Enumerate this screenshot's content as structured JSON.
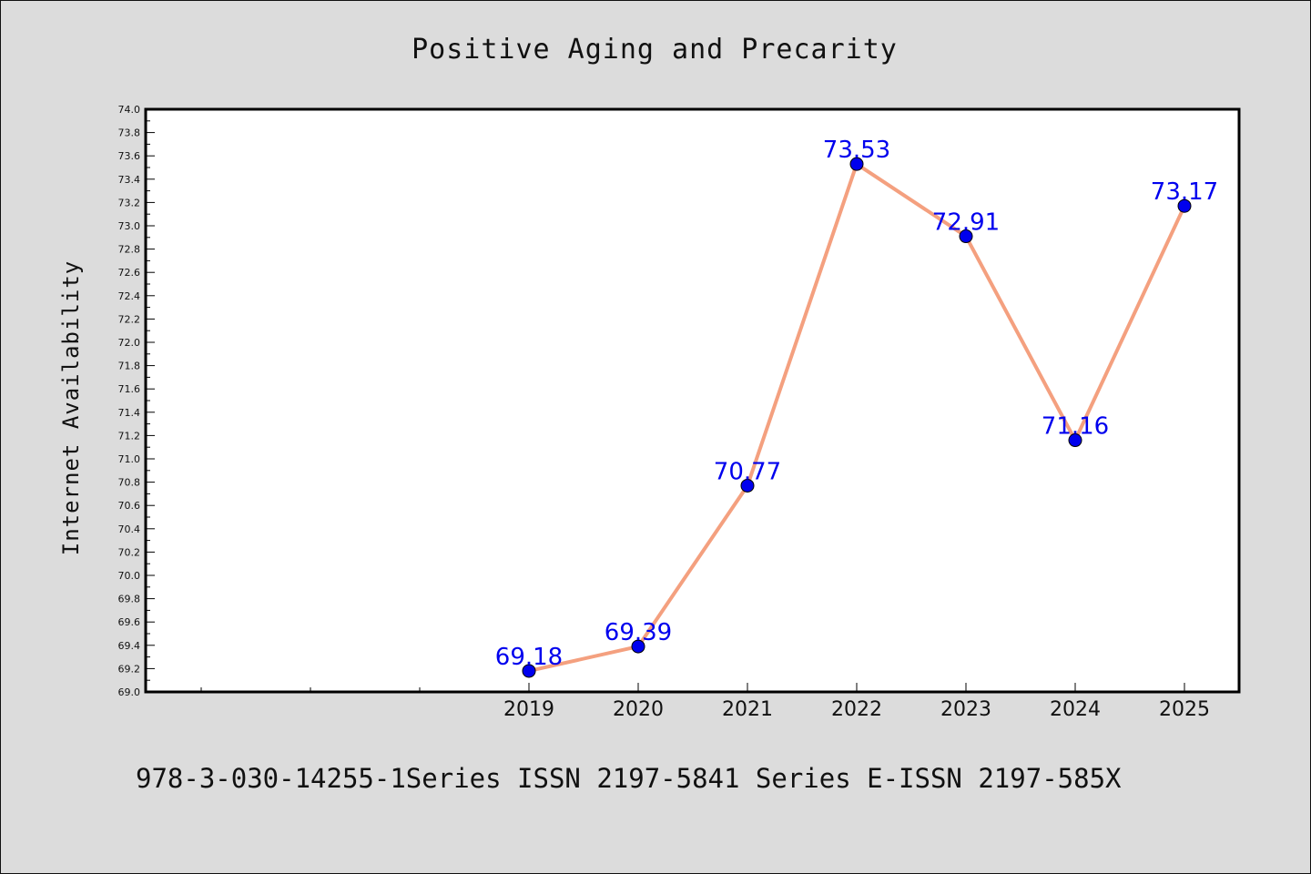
{
  "chart_data": {
    "type": "line",
    "title": "Positive Aging and Precarity",
    "ylabel": "Internet Availability",
    "xlabel": "",
    "footer_text": "978-3-030-14255-1Series ISSN 2197-5841 Series E-ISSN 2197-585X",
    "categories": [
      "2019",
      "2020",
      "2021",
      "2022",
      "2023",
      "2024",
      "2025"
    ],
    "values": [
      69.18,
      69.39,
      70.77,
      73.53,
      72.91,
      71.16,
      73.17
    ],
    "data_labels": [
      "69.18",
      "69.39",
      "70.77",
      "73.53",
      "72.91",
      "71.16",
      "73.17"
    ],
    "ylim": [
      69.0,
      74.0
    ],
    "y_ticks": [
      "69.0",
      "69.2",
      "69.4",
      "69.6",
      "69.8",
      "70.0",
      "70.2",
      "70.4",
      "70.6",
      "70.8",
      "71.0",
      "71.2",
      "71.4",
      "71.6",
      "71.8",
      "72.0",
      "72.2",
      "72.4",
      "72.6",
      "72.8",
      "73.0",
      "73.2",
      "73.4",
      "73.6",
      "73.8",
      "74.0"
    ],
    "grid": false,
    "colors": {
      "line": "#f4a07f",
      "marker": "#0000ee",
      "label": "#0000ee",
      "page_background": "#dcdcdc",
      "plot_background": "#ffffff"
    }
  }
}
